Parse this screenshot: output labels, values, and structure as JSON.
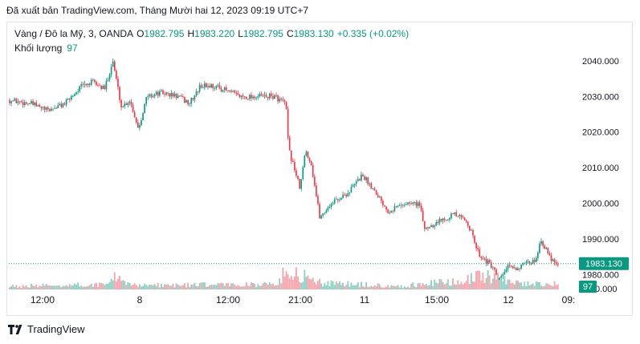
{
  "header": {
    "published": "Đã xuất bản TradingView.com, Tháng Mười hai 12, 2023 09:19 UTC+7"
  },
  "legend": {
    "symbol": "Vàng / Đô la Mỹ, 3, OANDA",
    "o_label": "O",
    "o_value": "1982.795",
    "h_label": "H",
    "h_value": "1983.220",
    "l_label": "L",
    "l_value": "1982.795",
    "c_label": "C",
    "c_value": "1983.130",
    "change": "+0.335 (+0.02%)",
    "volume_label": "Khối lượng",
    "volume_value": "97"
  },
  "footer": {
    "brand": "TradingView"
  },
  "colors": {
    "up": "#089981",
    "down": "#f23645",
    "vol_up": "#8fd0c4",
    "vol_down": "#f5a6ad",
    "badge": "#089981"
  },
  "chart_data": {
    "type": "candlestick",
    "x_ticks": [
      "12:00",
      "8",
      "12:00",
      "21:00",
      "11",
      "15:00",
      "12",
      "09:"
    ],
    "y_ticks": [
      1980,
      1990,
      2000,
      2010,
      2020,
      2030,
      2040
    ],
    "y_tick_labels": [
      "1980.000",
      "1990.000",
      "2000.000",
      "2010.000",
      "2020.000",
      "2030.000",
      "2040.000"
    ],
    "ylim": [
      1977,
      2044
    ],
    "last_price": 1983.13,
    "last_price_label": "1983.130",
    "last_volume_label": "97",
    "volume_axis_label": "0.000",
    "price_path": [
      [
        0,
        2029
      ],
      [
        0.04,
        2028
      ],
      [
        0.07,
        2026
      ],
      [
        0.1,
        2028
      ],
      [
        0.13,
        2033
      ],
      [
        0.15,
        2034
      ],
      [
        0.17,
        2032
      ],
      [
        0.185,
        2040
      ],
      [
        0.2,
        2027
      ],
      [
        0.215,
        2029
      ],
      [
        0.23,
        2021
      ],
      [
        0.245,
        2030
      ],
      [
        0.27,
        2031
      ],
      [
        0.3,
        2030
      ],
      [
        0.32,
        2028
      ],
      [
        0.34,
        2033
      ],
      [
        0.36,
        2033
      ],
      [
        0.38,
        2032
      ],
      [
        0.41,
        2030
      ],
      [
        0.44,
        2030
      ],
      [
        0.47,
        2030
      ],
      [
        0.49,
        2028
      ],
      [
        0.495,
        2015
      ],
      [
        0.505,
        2010
      ],
      [
        0.515,
        2004
      ],
      [
        0.525,
        2015
      ],
      [
        0.535,
        2011
      ],
      [
        0.55,
        1996
      ],
      [
        0.57,
        2000
      ],
      [
        0.6,
        2003
      ],
      [
        0.625,
        2008
      ],
      [
        0.65,
        2003
      ],
      [
        0.67,
        1998
      ],
      [
        0.7,
        2000
      ],
      [
        0.725,
        2000
      ],
      [
        0.735,
        1993
      ],
      [
        0.76,
        1995
      ],
      [
        0.785,
        1997
      ],
      [
        0.81,
        1995
      ],
      [
        0.83,
        1986
      ],
      [
        0.855,
        1982
      ],
      [
        0.865,
        1978
      ],
      [
        0.88,
        1982
      ],
      [
        0.9,
        1982
      ],
      [
        0.93,
        1984
      ],
      [
        0.94,
        1990
      ],
      [
        0.955,
        1985
      ],
      [
        0.97,
        1983.13
      ]
    ],
    "volume_profile": [
      [
        0,
        0.15
      ],
      [
        0.18,
        0.25
      ],
      [
        0.185,
        0.9
      ],
      [
        0.2,
        0.3
      ],
      [
        0.25,
        0.2
      ],
      [
        0.47,
        0.25
      ],
      [
        0.495,
        0.95
      ],
      [
        0.53,
        0.55
      ],
      [
        0.56,
        0.3
      ],
      [
        0.7,
        0.15
      ],
      [
        0.73,
        0.3
      ],
      [
        0.79,
        0.35
      ],
      [
        0.82,
        0.55
      ],
      [
        0.86,
        0.65
      ],
      [
        0.9,
        0.3
      ],
      [
        0.97,
        0.25
      ]
    ]
  }
}
